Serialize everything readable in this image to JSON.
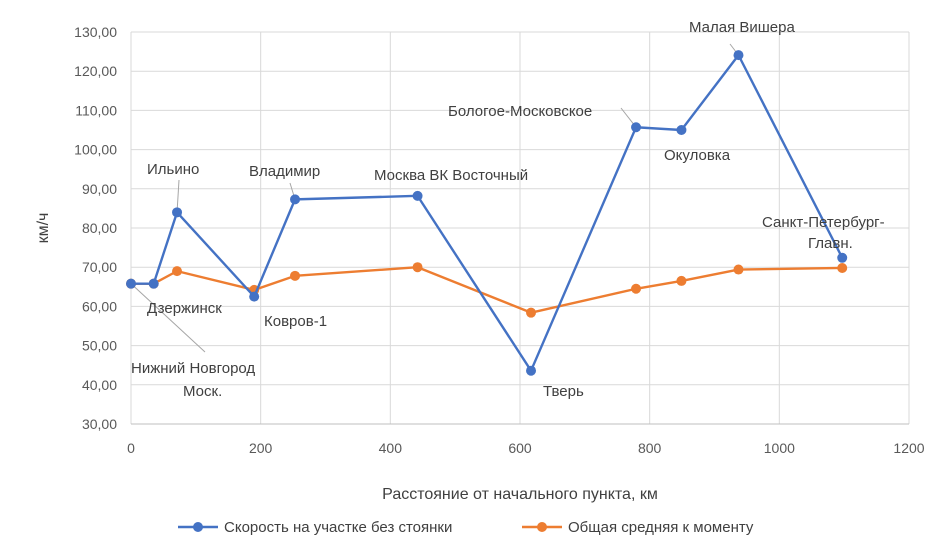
{
  "chart_data": {
    "type": "line",
    "xlabel": "Расстояние от начального пункта, км",
    "ylabel": "км/ч",
    "xlim": [
      0,
      1200
    ],
    "ylim": [
      30,
      130
    ],
    "x_ticks": [
      "0",
      "200",
      "400",
      "600",
      "800",
      "1000",
      "1200"
    ],
    "y_ticks": [
      "30,00",
      "40,00",
      "50,00",
      "60,00",
      "70,00",
      "80,00",
      "90,00",
      "100,00",
      "110,00",
      "120,00",
      "130,00"
    ],
    "grid": true,
    "legend_position": "bottom",
    "series": [
      {
        "name": "Скорость на участке без стоянки",
        "color": "#4472C4",
        "x": [
          0,
          35,
          71,
          190,
          253,
          442,
          617,
          779,
          849,
          937,
          1097
        ],
        "y": [
          65.8,
          65.8,
          84.0,
          62.5,
          87.3,
          88.2,
          43.6,
          105.7,
          105.0,
          124.1,
          72.4
        ]
      },
      {
        "name": "Общая средняя к моменту",
        "color": "#ED7D31",
        "x": [
          0,
          35,
          71,
          190,
          253,
          442,
          617,
          779,
          849,
          937,
          1097
        ],
        "y": [
          65.8,
          65.8,
          69.0,
          64.2,
          67.8,
          70.0,
          58.4,
          64.5,
          66.5,
          69.4,
          69.8
        ]
      }
    ],
    "annotations": [
      {
        "text": "Нижний Новгород",
        "x": 0,
        "y": 65.8
      },
      {
        "text": "Моск.",
        "x": 0,
        "y": 65.8
      },
      {
        "text": "Дзержинск",
        "x": 35,
        "y": 65.8
      },
      {
        "text": "Ильино",
        "x": 71,
        "y": 84.0
      },
      {
        "text": "Ковров-1",
        "x": 190,
        "y": 62.5
      },
      {
        "text": "Владимир",
        "x": 253,
        "y": 87.3
      },
      {
        "text": "Москва ВК Восточный",
        "x": 442,
        "y": 88.2
      },
      {
        "text": "Тверь",
        "x": 617,
        "y": 43.6
      },
      {
        "text": "Бологое-Московское",
        "x": 779,
        "y": 105.7
      },
      {
        "text": "Окуловка",
        "x": 849,
        "y": 105.0
      },
      {
        "text": "Малая Вишера",
        "x": 937,
        "y": 124.1
      },
      {
        "text": "Санкт-Петербург-",
        "x": 1097,
        "y": 72.4
      },
      {
        "text": "Главн.",
        "x": 1097,
        "y": 72.4
      }
    ]
  }
}
